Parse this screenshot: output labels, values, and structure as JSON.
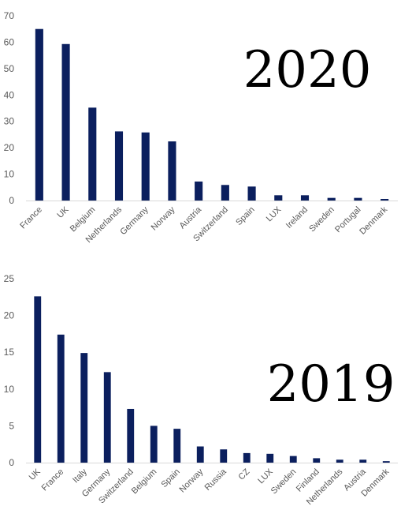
{
  "chart_data": [
    {
      "type": "bar",
      "title": "2020",
      "xlabel": "",
      "ylabel": "",
      "ylim": [
        0,
        70
      ],
      "yticks": [
        "0",
        "10",
        "20",
        "30",
        "40",
        "50",
        "60",
        "70"
      ],
      "categories": [
        "France",
        "UK",
        "Belgium",
        "Netherlands",
        "Germany",
        "Norway",
        "Austria",
        "Switzerland",
        "Spain",
        "LUX",
        "Ireland",
        "Sweden",
        "Portugal",
        "Denmark"
      ],
      "values": [
        65,
        59.3,
        35.2,
        26.2,
        25.8,
        22.4,
        7.2,
        5.9,
        5.3,
        2.0,
        2.0,
        1.0,
        1.0,
        0.6
      ],
      "grid": false,
      "bar_color": "#0b1f5e"
    },
    {
      "type": "bar",
      "title": "2019",
      "xlabel": "",
      "ylabel": "",
      "ylim": [
        0,
        25
      ],
      "yticks": [
        "0",
        "5",
        "10",
        "15",
        "20",
        "25"
      ],
      "categories": [
        "UK",
        "France",
        "Italy",
        "Germany",
        "Switzerland",
        "Belgium",
        "Spain",
        "Norway",
        "Russia",
        "CZ",
        "LUX",
        "Sweden",
        "Finland",
        "Netherlands",
        "Austria",
        "Denmark"
      ],
      "values": [
        22.6,
        17.4,
        14.9,
        12.3,
        7.3,
        5.0,
        4.6,
        2.2,
        1.8,
        1.3,
        1.2,
        0.9,
        0.6,
        0.4,
        0.4,
        0.2
      ],
      "grid": false,
      "bar_color": "#0b1f5e"
    }
  ]
}
